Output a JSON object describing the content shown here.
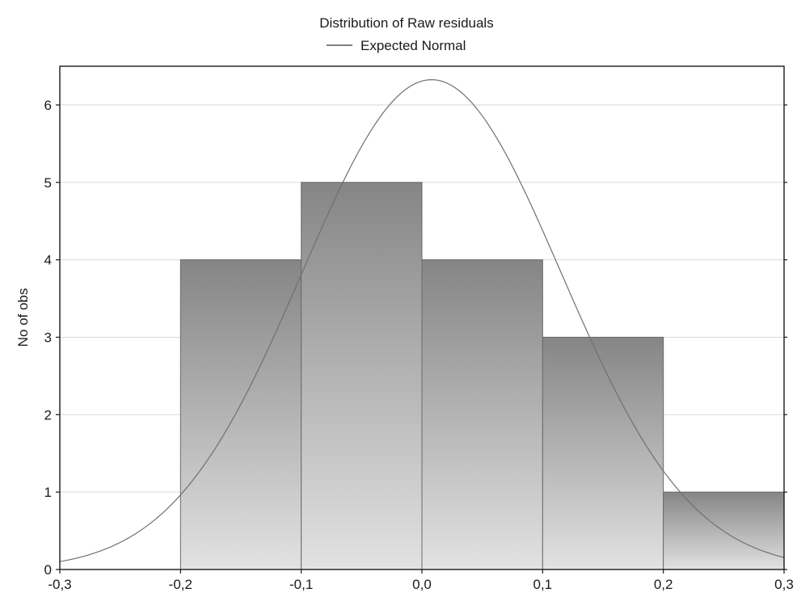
{
  "chart_data": {
    "type": "bar",
    "title": "Distribution of Raw residuals",
    "xlabel": "",
    "ylabel": "No of obs",
    "bins": [
      {
        "from": -0.2,
        "to": -0.1,
        "count": 4
      },
      {
        "from": -0.1,
        "to": 0.0,
        "count": 5
      },
      {
        "from": 0.0,
        "to": 0.1,
        "count": 4
      },
      {
        "from": 0.1,
        "to": 0.2,
        "count": 3
      },
      {
        "from": 0.2,
        "to": 0.3,
        "count": 1
      }
    ],
    "xlim": [
      -0.3,
      0.3
    ],
    "ylim": [
      0,
      6.5
    ],
    "x_ticks": [
      -0.3,
      -0.2,
      -0.1,
      0.0,
      0.1,
      0.2,
      0.3
    ],
    "x_tick_labels": [
      "-0,3",
      "-0,2",
      "-0,1",
      "0,0",
      "0,1",
      "0,2",
      "0,3"
    ],
    "y_ticks": [
      0,
      1,
      2,
      3,
      4,
      5,
      6
    ],
    "y_tick_labels": [
      "0",
      "1",
      "2",
      "3",
      "4",
      "5",
      "6"
    ],
    "normal_curve": {
      "name": "Expected Normal",
      "mean": 0.008,
      "sd": 0.1072,
      "n": 17,
      "bin_width": 0.1
    },
    "grid": true,
    "legend_position": "top-center",
    "colors": {
      "bar_top": "#858585",
      "bar_bottom": "#e2e2e2",
      "bar_edge": "#6a6a6a",
      "curve": "#707070",
      "grid": "#d8d8d8",
      "axis": "#1a1a1a"
    }
  }
}
